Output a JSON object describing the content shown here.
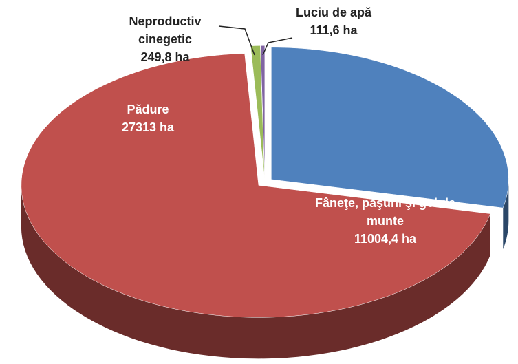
{
  "chart_data": {
    "type": "pie",
    "categories": [
      "Fâneţe, păşuni şi gol de munte",
      "Pădure",
      "Neproductiv cinegetic",
      "Luciu de apă"
    ],
    "values": [
      11004.4,
      27313,
      249.8,
      111.6
    ],
    "value_labels": [
      "11004,4 ha",
      "27313 ha",
      "249,8 ha",
      "111,6 ha"
    ],
    "colors": [
      "#4f81bd",
      "#c0504d",
      "#9bbb59",
      "#8064a2"
    ]
  }
}
